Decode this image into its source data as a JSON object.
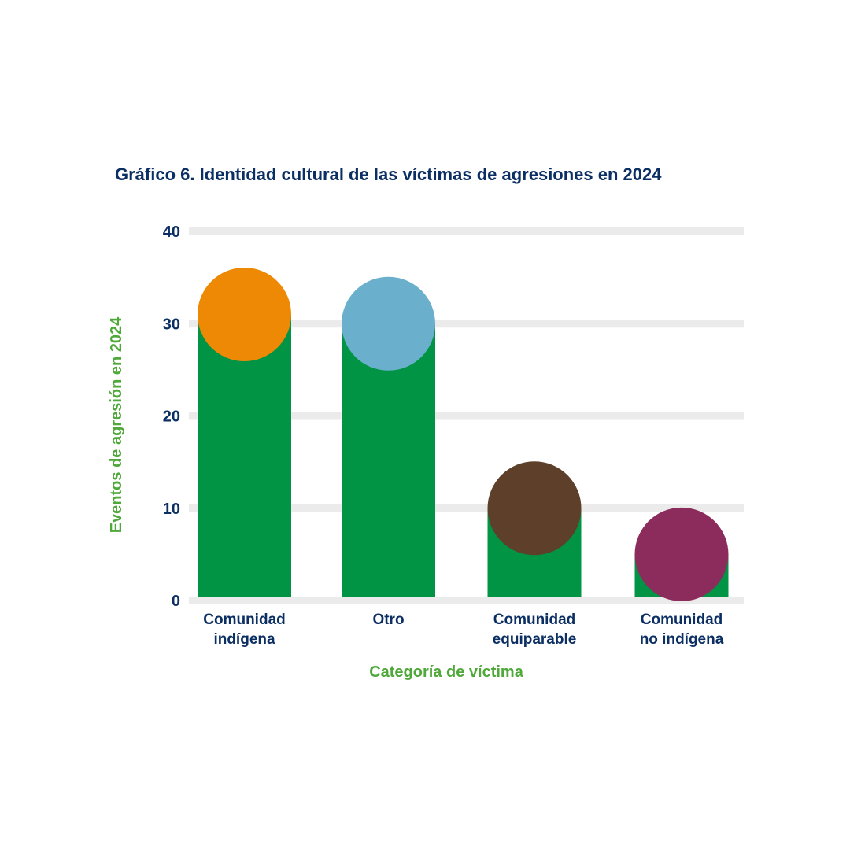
{
  "chart_data": {
    "type": "bar",
    "title": "Gráfico 6. Identidad cultural de las víctimas de agresiones en 2024",
    "xlabel": "Categoría de víctima",
    "ylabel": "Eventos de agresión en 2024",
    "ylim": [
      0,
      40
    ],
    "yticks": [
      0,
      10,
      20,
      30,
      40
    ],
    "grid": true,
    "categories": [
      [
        "Comunidad",
        "indígena"
      ],
      [
        "Otro"
      ],
      [
        "Comunidad",
        "equiparable"
      ],
      [
        "Comunidad",
        "no indígena"
      ]
    ],
    "values": [
      31,
      30,
      10,
      5
    ],
    "bar_color": "#009444",
    "marker_colors": [
      "#ee8905",
      "#6ab0cd",
      "#5e3f29",
      "#8c2c5d"
    ]
  },
  "colors": {
    "grid": "#ebebeb",
    "text": "#0c2f63",
    "axis_label": "#4fa83a"
  }
}
